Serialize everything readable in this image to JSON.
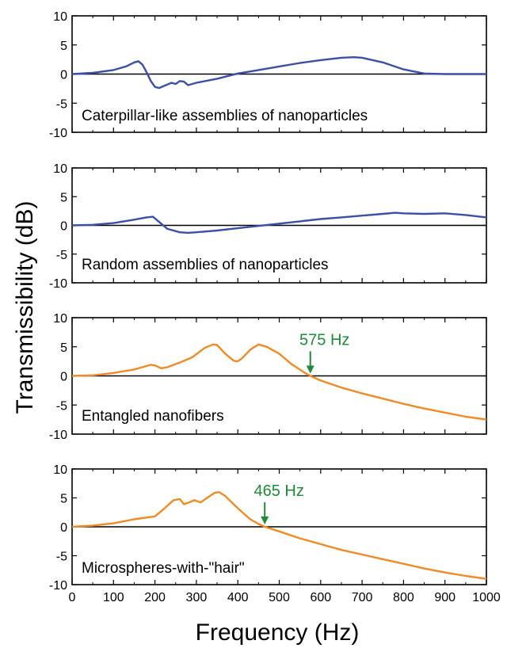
{
  "figure": {
    "ylabel": "Transmissibility (dB)",
    "xlabel": "Frequency (Hz)",
    "colors": {
      "blue": "#3a4fa8",
      "orange": "#f08a24",
      "annotation": "#1e8a3a",
      "axis": "#000000"
    }
  },
  "chart_data": [
    {
      "type": "line",
      "label": "Caterpillar-like assemblies of nanoparticles",
      "xlim": [
        0,
        1000
      ],
      "ylim": [
        -10,
        10
      ],
      "x_ticks": [
        0,
        100,
        200,
        300,
        400,
        500,
        600,
        700,
        800,
        900,
        1000
      ],
      "x_tick_labels": [
        "",
        "",
        "",
        "",
        "",
        "",
        "",
        "",
        "",
        "",
        ""
      ],
      "y_ticks": [
        10,
        5,
        0,
        -5,
        -10
      ],
      "y_tick_labels": [
        "10",
        "5",
        "0",
        "-5",
        "-10"
      ],
      "color": "#3a4fa8",
      "series": [
        {
          "x": [
            0,
            50,
            100,
            130,
            150,
            160,
            170,
            180,
            190,
            200,
            210,
            220,
            230,
            240,
            250,
            260,
            270,
            280,
            300,
            350,
            400,
            450,
            500,
            550,
            600,
            650,
            680,
            700,
            750,
            800,
            850,
            900,
            950,
            1000
          ],
          "y": [
            0,
            0.2,
            0.7,
            1.3,
            2.0,
            2.2,
            1.6,
            0.3,
            -1.2,
            -2.2,
            -2.4,
            -2.1,
            -1.8,
            -1.5,
            -1.7,
            -1.2,
            -1.3,
            -1.9,
            -1.5,
            -0.8,
            0.1,
            0.7,
            1.3,
            1.9,
            2.4,
            2.8,
            2.9,
            2.8,
            2.0,
            0.8,
            0.1,
            0.0,
            0.0,
            0.0
          ]
        }
      ],
      "annotation": null
    },
    {
      "type": "line",
      "label": "Random assemblies of nanoparticles",
      "xlim": [
        0,
        1000
      ],
      "ylim": [
        -10,
        10
      ],
      "x_ticks": [
        0,
        100,
        200,
        300,
        400,
        500,
        600,
        700,
        800,
        900,
        1000
      ],
      "x_tick_labels": [
        "",
        "",
        "",
        "",
        "",
        "",
        "",
        "",
        "",
        "",
        ""
      ],
      "y_ticks": [
        10,
        5,
        0,
        -5,
        -10
      ],
      "y_tick_labels": [
        "10",
        "5",
        "0",
        "-5",
        "-10"
      ],
      "color": "#3a4fa8",
      "series": [
        {
          "x": [
            0,
            50,
            100,
            150,
            180,
            195,
            210,
            230,
            260,
            280,
            300,
            350,
            400,
            450,
            500,
            550,
            600,
            650,
            700,
            750,
            780,
            800,
            850,
            900,
            950,
            1000
          ],
          "y": [
            0,
            0.1,
            0.4,
            1.0,
            1.4,
            1.5,
            0.6,
            -0.6,
            -1.2,
            -1.3,
            -1.2,
            -0.9,
            -0.5,
            -0.1,
            0.3,
            0.7,
            1.1,
            1.4,
            1.7,
            2.0,
            2.2,
            2.1,
            2.0,
            2.1,
            1.8,
            1.4
          ]
        }
      ],
      "annotation": null
    },
    {
      "type": "line",
      "label": "Entangled nanofibers",
      "xlim": [
        0,
        1000
      ],
      "ylim": [
        -10,
        10
      ],
      "x_ticks": [
        0,
        100,
        200,
        300,
        400,
        500,
        600,
        700,
        800,
        900,
        1000
      ],
      "x_tick_labels": [
        "",
        "",
        "",
        "",
        "",
        "",
        "",
        "",
        "",
        "",
        ""
      ],
      "y_ticks": [
        10,
        5,
        0,
        -5,
        -10
      ],
      "y_tick_labels": [
        "10",
        "5",
        "0",
        "-5",
        "-10"
      ],
      "color": "#f08a24",
      "series": [
        {
          "x": [
            0,
            50,
            100,
            150,
            190,
            200,
            215,
            230,
            260,
            290,
            320,
            340,
            350,
            370,
            390,
            400,
            410,
            430,
            450,
            470,
            500,
            530,
            560,
            575,
            600,
            650,
            700,
            750,
            800,
            850,
            900,
            950,
            1000
          ],
          "y": [
            0,
            0.1,
            0.5,
            1.1,
            1.9,
            1.8,
            1.3,
            1.5,
            2.3,
            3.2,
            4.8,
            5.4,
            5.3,
            3.8,
            2.6,
            2.5,
            3.0,
            4.5,
            5.4,
            5.0,
            3.8,
            2.0,
            0.6,
            0.0,
            -0.8,
            -2.0,
            -3.0,
            -3.9,
            -4.8,
            -5.6,
            -6.3,
            -7.0,
            -7.5
          ]
        }
      ],
      "annotation": {
        "text": "575 Hz",
        "x": 575
      }
    },
    {
      "type": "line",
      "label": "Microspheres-with-\"hair\"",
      "xlim": [
        0,
        1000
      ],
      "ylim": [
        -10,
        10
      ],
      "x_ticks": [
        0,
        100,
        200,
        300,
        400,
        500,
        600,
        700,
        800,
        900,
        1000
      ],
      "x_tick_labels": [
        "0",
        "100",
        "200",
        "300",
        "400",
        "500",
        "600",
        "700",
        "800",
        "900",
        "1000"
      ],
      "y_ticks": [
        10,
        5,
        0,
        -5,
        -10
      ],
      "y_tick_labels": [
        "10",
        "5",
        "0",
        "-5",
        "-10"
      ],
      "color": "#f08a24",
      "series": [
        {
          "x": [
            0,
            50,
            100,
            150,
            190,
            200,
            220,
            245,
            260,
            270,
            285,
            295,
            310,
            330,
            345,
            355,
            370,
            400,
            430,
            450,
            465,
            500,
            550,
            600,
            650,
            700,
            750,
            800,
            850,
            900,
            950,
            1000
          ],
          "y": [
            0,
            0.2,
            0.6,
            1.3,
            1.7,
            1.8,
            3.0,
            4.6,
            4.8,
            3.9,
            4.3,
            4.6,
            4.2,
            5.2,
            5.9,
            6.0,
            5.3,
            3.2,
            1.3,
            0.5,
            0.0,
            -0.8,
            -2.0,
            -3.0,
            -4.0,
            -4.8,
            -5.6,
            -6.4,
            -7.2,
            -7.9,
            -8.5,
            -9.0
          ]
        }
      ],
      "annotation": {
        "text": "465 Hz",
        "x": 465
      }
    }
  ]
}
